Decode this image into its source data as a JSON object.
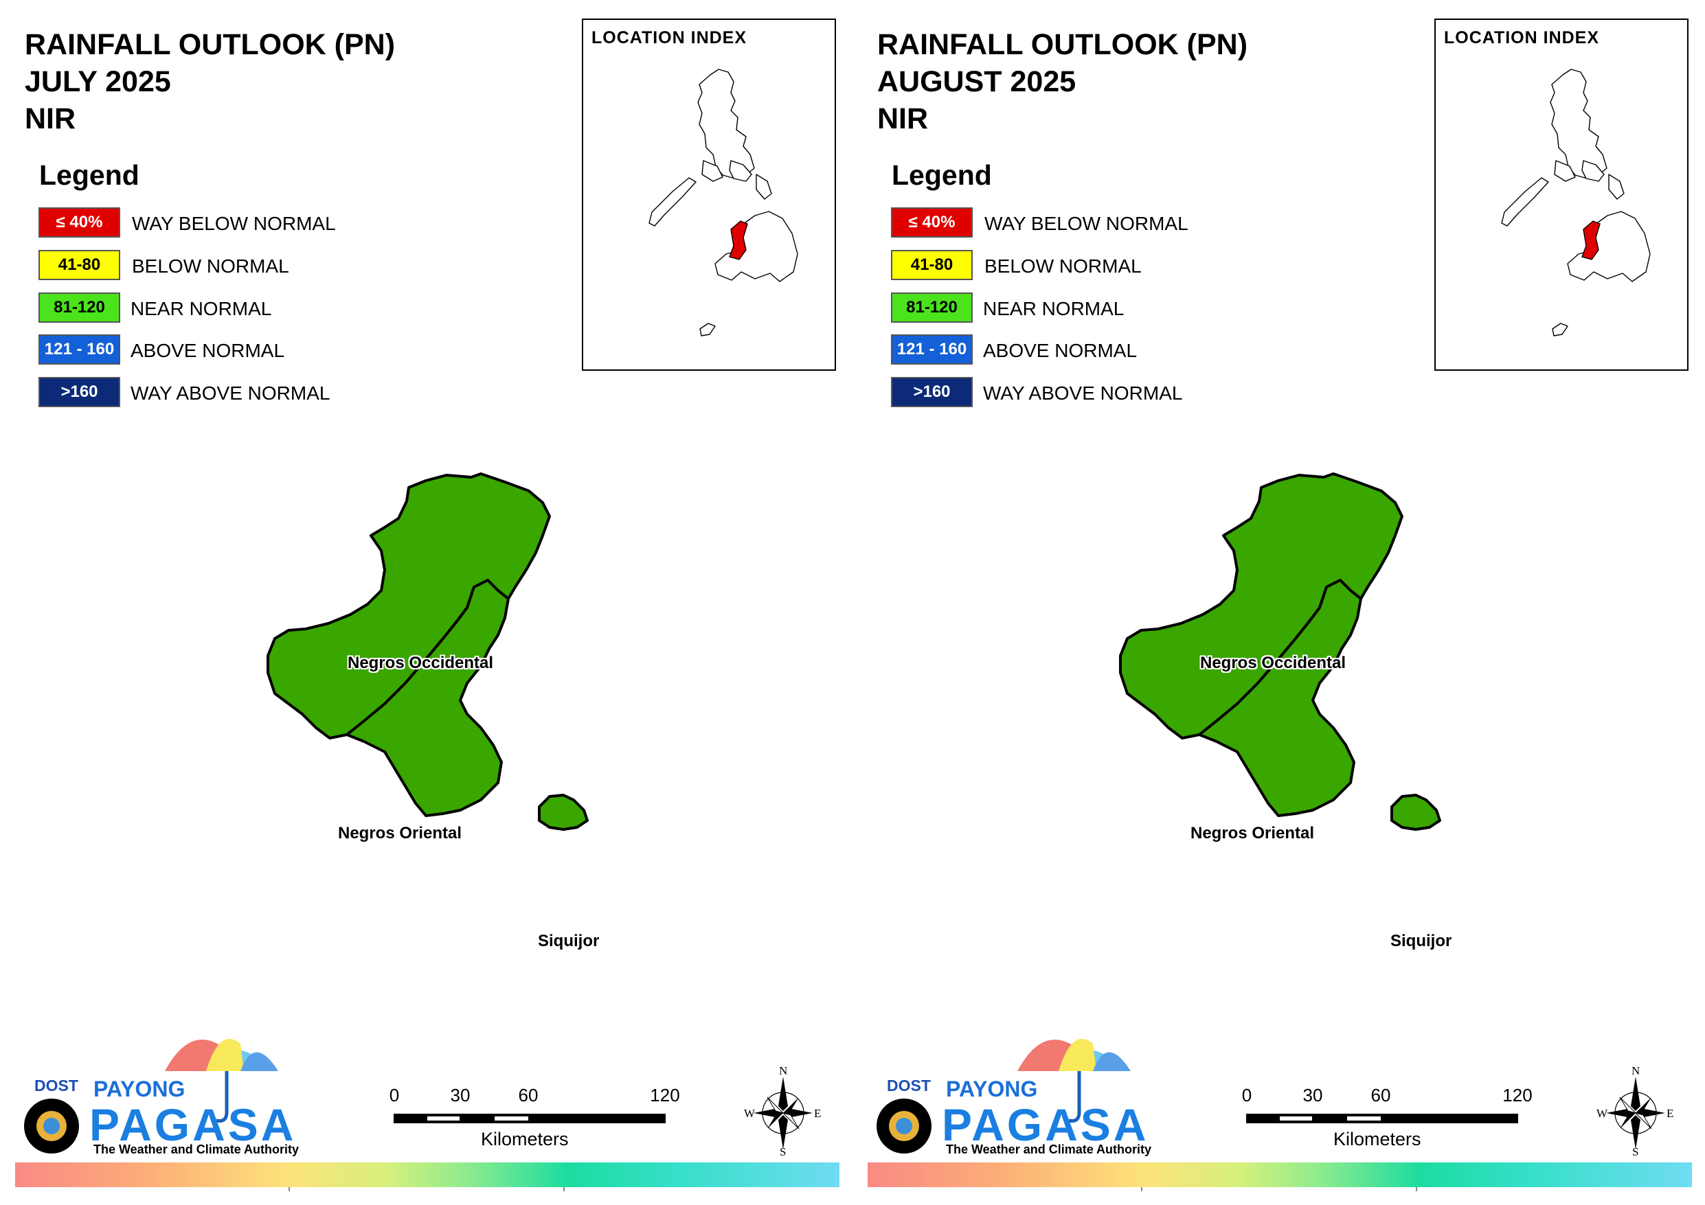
{
  "panels": [
    {
      "title_line1": "RAINFALL OUTLOOK (PN)",
      "title_line2": "JULY 2025",
      "title_line3": "NIR",
      "legend_title": "Legend",
      "legend": [
        {
          "range": "≤ 40%",
          "label": "WAY BELOW NORMAL",
          "color": "#e00000",
          "text_color": "#ffffff"
        },
        {
          "range": "41-80",
          "label": "BELOW NORMAL",
          "color": "#ffff00",
          "text_color": "#000000"
        },
        {
          "range": "81-120",
          "label": "NEAR NORMAL",
          "color": "#4be31c",
          "text_color": "#000000"
        },
        {
          "range": "121 - 160",
          "label": "ABOVE NORMAL",
          "color": "#1460d8",
          "text_color": "#ffffff"
        },
        {
          "range": ">160",
          "label": "WAY ABOVE NORMAL",
          "color": "#0c2a78",
          "text_color": "#ffffff"
        }
      ],
      "location_index_title": "LOCATION INDEX",
      "provinces": [
        {
          "name": "Negros Occidental",
          "category": "NEAR NORMAL"
        },
        {
          "name": "Negros Oriental",
          "category": "NEAR NORMAL"
        },
        {
          "name": "Siquijor",
          "category": "NEAR NORMAL"
        }
      ],
      "logo": {
        "dost": "DOST",
        "payong": "PAYONG",
        "pagasa": "PAGASA",
        "tagline": "The Weather and Climate Authority"
      },
      "scale": {
        "ticks": [
          "0",
          "30",
          "60",
          "120"
        ],
        "unit": "Kilometers"
      },
      "compass": {
        "n": "N",
        "e": "E",
        "s": "S",
        "w": "W"
      }
    },
    {
      "title_line1": "RAINFALL OUTLOOK (PN)",
      "title_line2": "AUGUST 2025",
      "title_line3": "NIR",
      "legend_title": "Legend",
      "legend": [
        {
          "range": "≤ 40%",
          "label": "WAY BELOW NORMAL",
          "color": "#e00000",
          "text_color": "#ffffff"
        },
        {
          "range": "41-80",
          "label": "BELOW NORMAL",
          "color": "#ffff00",
          "text_color": "#000000"
        },
        {
          "range": "81-120",
          "label": "NEAR NORMAL",
          "color": "#4be31c",
          "text_color": "#000000"
        },
        {
          "range": "121 - 160",
          "label": "ABOVE NORMAL",
          "color": "#1460d8",
          "text_color": "#ffffff"
        },
        {
          "range": ">160",
          "label": "WAY ABOVE NORMAL",
          "color": "#0c2a78",
          "text_color": "#ffffff"
        }
      ],
      "location_index_title": "LOCATION INDEX",
      "provinces": [
        {
          "name": "Negros Occidental",
          "category": "NEAR NORMAL"
        },
        {
          "name": "Negros Oriental",
          "category": "NEAR NORMAL"
        },
        {
          "name": "Siquijor",
          "category": "NEAR NORMAL"
        }
      ],
      "logo": {
        "dost": "DOST",
        "payong": "PAYONG",
        "pagasa": "PAGASA",
        "tagline": "The Weather and Climate Authority"
      },
      "scale": {
        "ticks": [
          "0",
          "30",
          "60",
          "120"
        ],
        "unit": "Kilometers"
      },
      "compass": {
        "n": "N",
        "e": "E",
        "s": "S",
        "w": "W"
      }
    }
  ],
  "map_fill_color": "#3aa600",
  "highlight_color": "#e00000"
}
